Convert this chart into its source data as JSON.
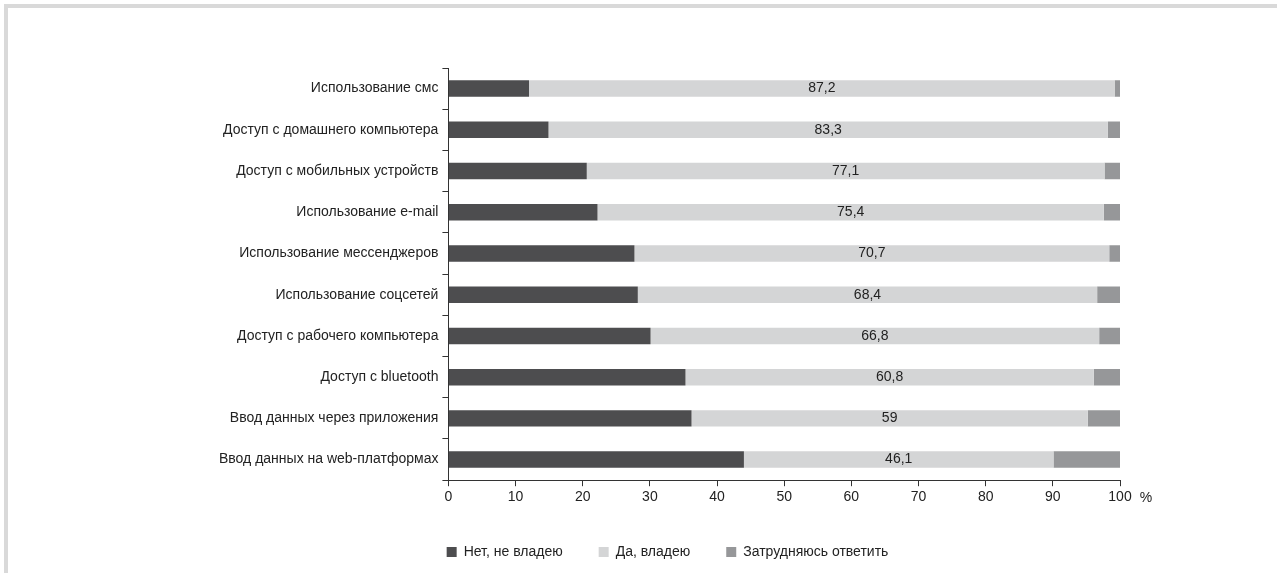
{
  "chart_data": {
    "type": "bar",
    "orientation": "horizontal",
    "stacked": true,
    "categories": [
      "Использование смс",
      "Доступ с домашнего компьютера",
      "Доступ с мобильных устройств",
      "Использование e-mail",
      "Использование мессенджеров",
      "Использование соцсетей",
      "Доступ с рабочего компьютера",
      "Доступ с bluetooth",
      "Ввод данных через приложения",
      "Ввод данных на web-платформах"
    ],
    "series": [
      {
        "name": "Нет, не владею",
        "color": "#4d4d4f",
        "values": [
          12.0,
          14.9,
          20.6,
          22.2,
          27.7,
          28.2,
          30.1,
          35.3,
          36.2,
          44.0
        ]
      },
      {
        "name": "Да, владею",
        "color": "#d4d5d6",
        "values": [
          87.2,
          83.3,
          77.1,
          75.4,
          70.7,
          68.4,
          66.8,
          60.8,
          59,
          46.1
        ],
        "value_labels": [
          "87,2",
          "83,3",
          "77,1",
          "75,4",
          "70,7",
          "68,4",
          "66,8",
          "60,8",
          "59",
          "46,1"
        ]
      },
      {
        "name": "Затрудняюсь ответить",
        "color": "#969799",
        "values": [
          0.8,
          1.8,
          2.3,
          2.4,
          1.6,
          3.4,
          3.1,
          3.9,
          4.8,
          9.9
        ]
      }
    ],
    "xlim": [
      0,
      100
    ],
    "xticks": [
      0,
      10,
      20,
      30,
      40,
      50,
      60,
      70,
      80,
      90,
      100
    ],
    "xlabel": "%",
    "grid": false,
    "legend": "bottom"
  }
}
